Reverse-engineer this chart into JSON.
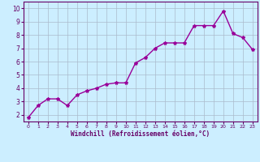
{
  "x": [
    0,
    1,
    2,
    3,
    4,
    5,
    6,
    7,
    8,
    9,
    10,
    11,
    12,
    13,
    14,
    15,
    16,
    17,
    18,
    19,
    20,
    21,
    22,
    23
  ],
  "y": [
    1.8,
    2.7,
    3.2,
    3.2,
    2.7,
    3.5,
    3.8,
    4.0,
    4.3,
    4.4,
    4.4,
    5.9,
    6.3,
    7.0,
    7.4,
    7.4,
    7.4,
    8.7,
    8.7,
    8.7,
    9.8,
    8.1,
    7.8,
    6.9
  ],
  "xlabel": "Windchill (Refroidissement éolien,°C)",
  "xlim": [
    -0.5,
    23.5
  ],
  "ylim": [
    1.5,
    10.5
  ],
  "yticks": [
    2,
    3,
    4,
    5,
    6,
    7,
    8,
    9,
    10
  ],
  "xticks": [
    0,
    1,
    2,
    3,
    4,
    5,
    6,
    7,
    8,
    9,
    10,
    11,
    12,
    13,
    14,
    15,
    16,
    17,
    18,
    19,
    20,
    21,
    22,
    23
  ],
  "line_color": "#990099",
  "marker": "*",
  "bg_color": "#cceeff",
  "grid_color": "#aabbcc",
  "axis_color": "#660066",
  "tick_color": "#660066",
  "label_color": "#660066"
}
